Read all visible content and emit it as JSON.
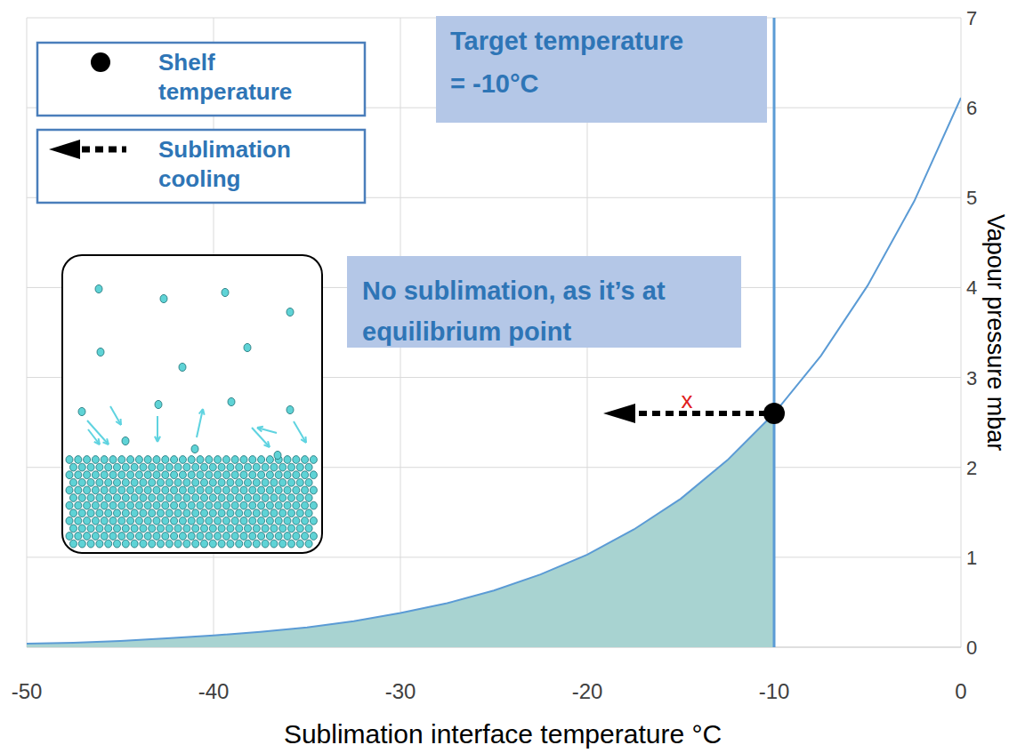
{
  "chart_data": {
    "type": "area",
    "x": [
      -50,
      -47.5,
      -45,
      -42.5,
      -40,
      -37.5,
      -35,
      -32.5,
      -30,
      -27.5,
      -25,
      -22.5,
      -20,
      -17.5,
      -15,
      -12.5,
      -10,
      -7.5,
      -5,
      -2.5,
      0
    ],
    "values": [
      0.04,
      0.05,
      0.07,
      0.1,
      0.13,
      0.17,
      0.22,
      0.29,
      0.38,
      0.49,
      0.63,
      0.81,
      1.03,
      1.31,
      1.65,
      2.08,
      2.6,
      3.24,
      4.02,
      4.96,
      6.11
    ],
    "color": "#5b9bd5",
    "xlim": [
      -50,
      0
    ],
    "ylim": [
      0,
      7
    ],
    "xticks": [
      -50,
      -40,
      -30,
      -20,
      -10,
      0
    ],
    "yticks": [
      0,
      1,
      2,
      3,
      4,
      5,
      6,
      7
    ],
    "grid": true,
    "x_label": "Sublimation interface temperature °C",
    "y_label": "Vapour pressure mbar",
    "target": {
      "value": -10,
      "lines": [
        "Target temperature",
        "= -10°C"
      ]
    },
    "shelf_point": {
      "x": -10,
      "y": 2.6
    },
    "annotation": {
      "lines": [
        "No sublimation, as it’s at",
        "equilibrium point"
      ]
    },
    "blocked_mark": "x",
    "legend": "upper left",
    "legend_items": [
      {
        "label": "Shelf temperature",
        "marker": "dot"
      },
      {
        "label": "Sublimation cooling",
        "marker": "arrow"
      }
    ]
  }
}
